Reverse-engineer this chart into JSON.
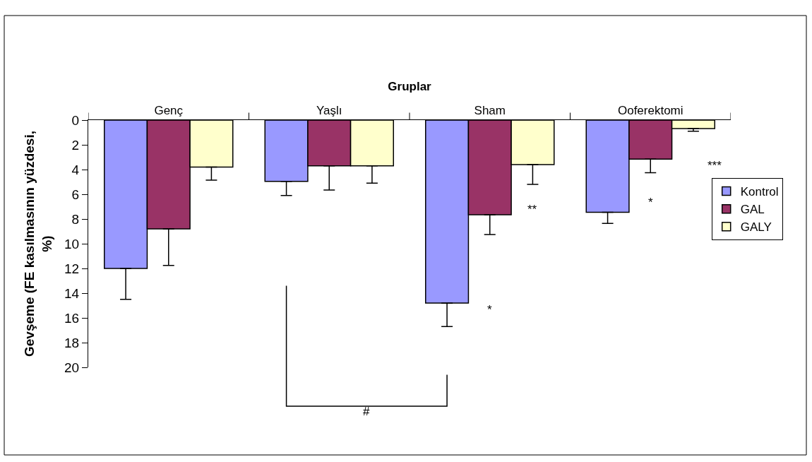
{
  "chart_data": {
    "type": "bar",
    "xlabel": "Gruplar",
    "ylabel": "Gevşeme (FE kasılmasının yüzdesi, %)",
    "categories": [
      "Genç",
      "Yaşlı",
      "Sham",
      "Ooferektomi"
    ],
    "series": [
      {
        "name": "Kontrol",
        "color": "#9999ff",
        "values": [
          12.0,
          4.95,
          14.8,
          7.45
        ],
        "errors": [
          [
            12.0,
            14.5
          ],
          [
            4.95,
            6.1
          ],
          [
            14.8,
            16.7
          ],
          [
            7.45,
            8.35
          ]
        ]
      },
      {
        "name": "GAL",
        "color": "#993366",
        "values": [
          8.8,
          3.7,
          7.65,
          3.15
        ],
        "errors": [
          [
            8.8,
            11.75
          ],
          [
            3.7,
            5.65
          ],
          [
            7.65,
            9.25
          ],
          [
            3.15,
            4.25
          ]
        ]
      },
      {
        "name": "GALY",
        "color": "#ffffcc",
        "values": [
          3.8,
          3.7,
          3.6,
          0.68
        ],
        "errors": [
          [
            3.8,
            4.85
          ],
          [
            3.7,
            5.1
          ],
          [
            3.6,
            5.2
          ],
          [
            0.68,
            0.9
          ]
        ]
      }
    ],
    "ylim": [
      20,
      0
    ],
    "yticks": [
      0,
      2,
      4,
      6,
      8,
      10,
      12,
      14,
      16,
      18,
      20
    ],
    "annotations": [
      "*",
      "**",
      "*",
      "***",
      "#"
    ],
    "grid": false,
    "legend": "right"
  }
}
